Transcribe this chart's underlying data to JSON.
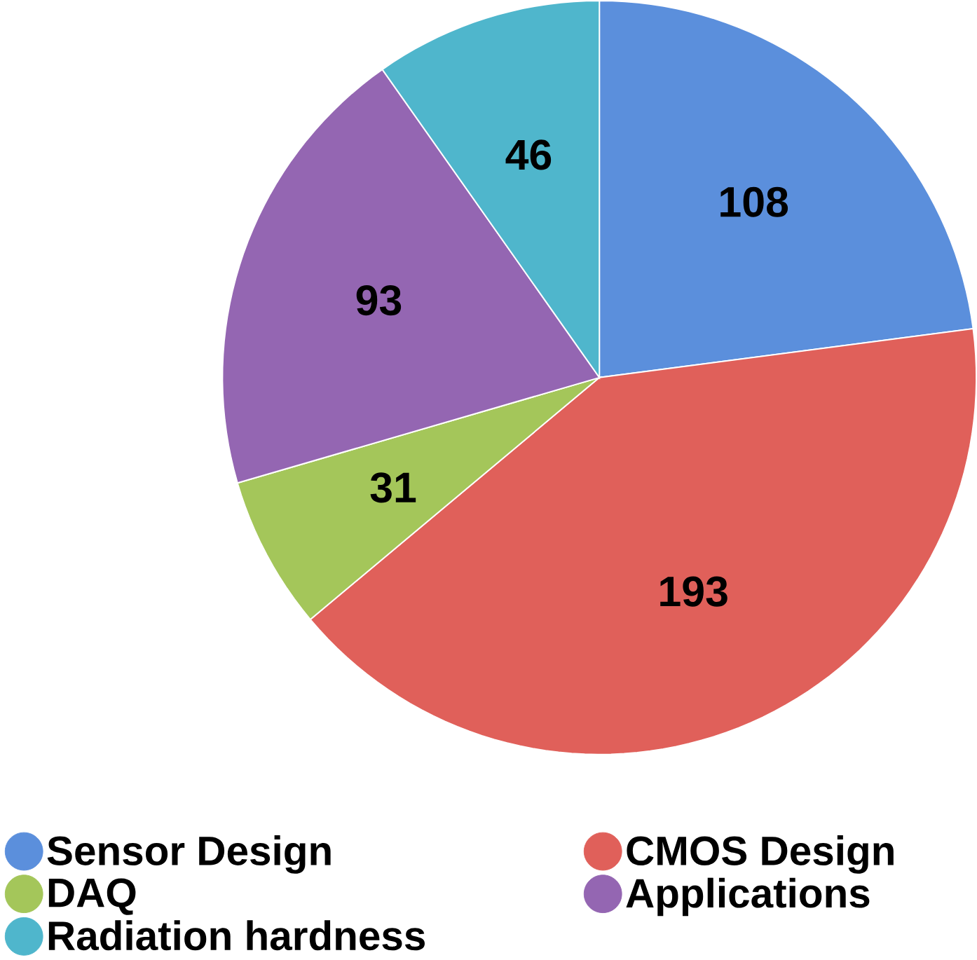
{
  "chart_data": {
    "type": "pie",
    "categories": [
      "Sensor Design",
      "CMOS Design",
      "DAQ",
      "Applications",
      "Radiation hardness"
    ],
    "values": [
      108,
      193,
      31,
      93,
      46
    ],
    "colors": [
      "#5b8fdc",
      "#e0605a",
      "#a4c65a",
      "#9466b2",
      "#4fb6cc"
    ],
    "data_labels": true,
    "legend": "bottom"
  }
}
